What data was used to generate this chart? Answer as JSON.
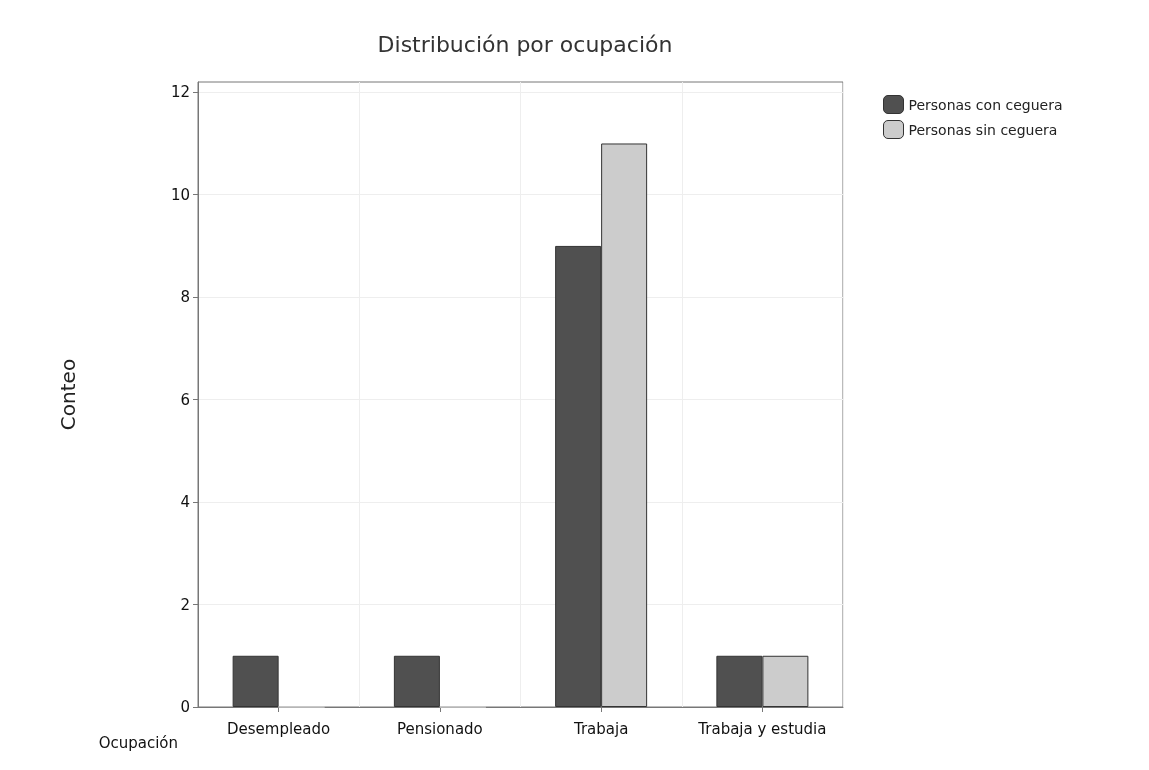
{
  "chart_data": {
    "type": "bar",
    "title": "Distribución por ocupación",
    "xlabel": "Ocupación",
    "ylabel": "Conteo",
    "categories": [
      "Desempleado",
      "Pensionado",
      "Trabaja",
      "Trabaja y estudia"
    ],
    "series": [
      {
        "name": "Personas con ceguera",
        "color": "#505050",
        "values": [
          1,
          1,
          9,
          1
        ]
      },
      {
        "name": "Personas sin ceguera",
        "color": "#cccccc",
        "values": [
          0,
          0,
          11,
          1
        ]
      }
    ],
    "ylim": [
      0,
      12.2
    ],
    "yticks": [
      0,
      2,
      4,
      6,
      8,
      10,
      12
    ],
    "grid": true,
    "legend": "top right"
  }
}
